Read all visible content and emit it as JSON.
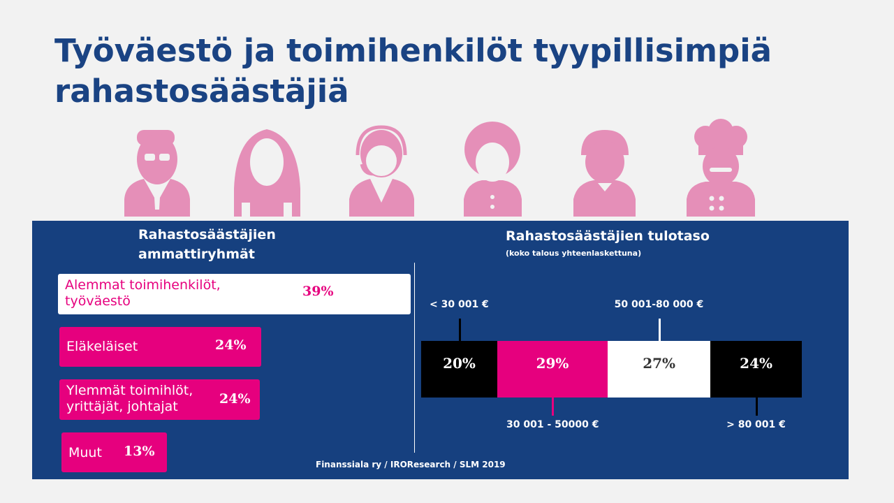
{
  "title": "Työväestö ja toimihenkilöt tyypillisimpiä rahastosäästäjiä",
  "colors": {
    "navy": "#16407f",
    "magenta": "#e6007e",
    "pink": "#e58fb8",
    "title": "#1a4383"
  },
  "icons": [
    "businessman-icon",
    "woman-icon",
    "call-center-agent-icon",
    "elderly-person-icon",
    "young-man-icon",
    "chef-icon"
  ],
  "chart_data": [
    {
      "type": "bar",
      "title": "Rahastosäästäjien ammattiryhmät",
      "categories": [
        "Alemmat toimihenkilöt, työväestö",
        "Eläkeläiset",
        "Ylemmät toimihlöt, yrittäjät, johtajat",
        "Muut"
      ],
      "values": [
        39,
        24,
        24,
        13
      ],
      "value_labels": [
        "39%",
        "24%",
        "24%",
        "13%"
      ],
      "unit": "%"
    },
    {
      "type": "bar",
      "subtype": "stacked-100",
      "title": "Rahastosäästäjien tulotaso",
      "subtitle": "(koko talous yhteenlaskettuna)",
      "categories": [
        "< 30 001 €",
        "30 001 - 50000 €",
        "50 001-80 000 €",
        "> 80 001 €"
      ],
      "values": [
        20,
        29,
        27,
        24
      ],
      "value_labels": [
        "20%",
        "29%",
        "27%",
        "24%"
      ],
      "unit": "%"
    }
  ],
  "source": "Finanssiala ry / IROResearch / SLM 2019"
}
